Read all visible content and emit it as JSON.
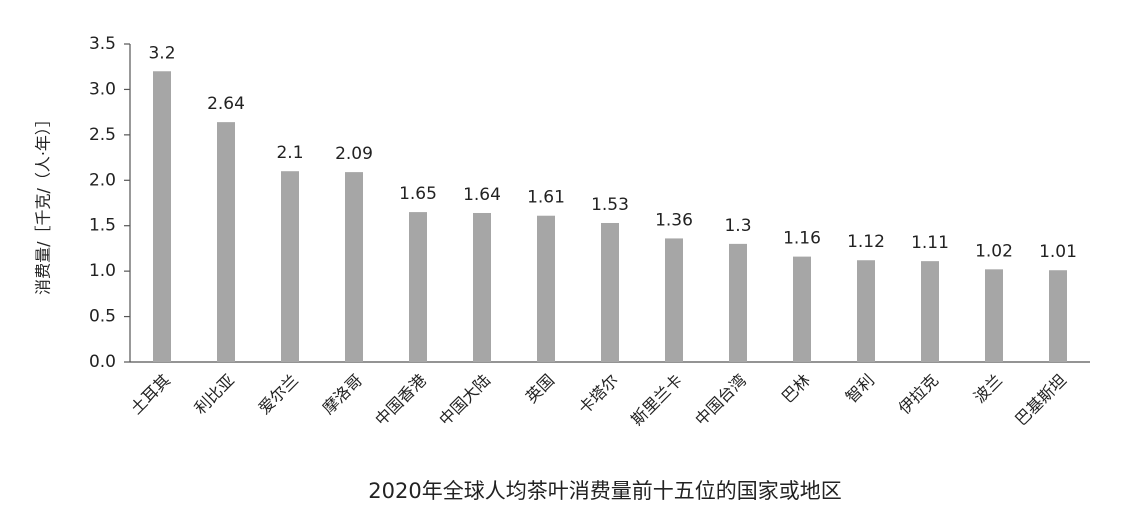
{
  "chart_data": {
    "type": "bar",
    "title": "2020年全球人均茶叶消费量前十五位的国家或地区",
    "y_label": "消费量/［千克/（人·年）］",
    "categories": [
      "土耳其",
      "利比亚",
      "爱尔兰",
      "摩洛哥",
      "中国香港",
      "中国大陆",
      "英国",
      "卡塔尔",
      "斯里兰卡",
      "中国台湾",
      "巴林",
      "智利",
      "伊拉克",
      "波兰",
      "巴基斯坦"
    ],
    "values": [
      3.2,
      2.64,
      2.1,
      2.09,
      1.65,
      1.64,
      1.61,
      1.53,
      1.36,
      1.3,
      1.16,
      1.12,
      1.11,
      1.02,
      1.01
    ],
    "color": "#a6a6a6",
    "ylim": [
      0,
      3.5
    ],
    "yticks": [
      {
        "value": 0,
        "label": "0.0"
      },
      0.5,
      {
        "value": 1,
        "label": "1.0"
      },
      1.5,
      {
        "value": 2,
        "label": "2.0"
      },
      2.5,
      {
        "value": 3,
        "label": "3.0"
      },
      3.5
    ],
    "grid": false
  }
}
